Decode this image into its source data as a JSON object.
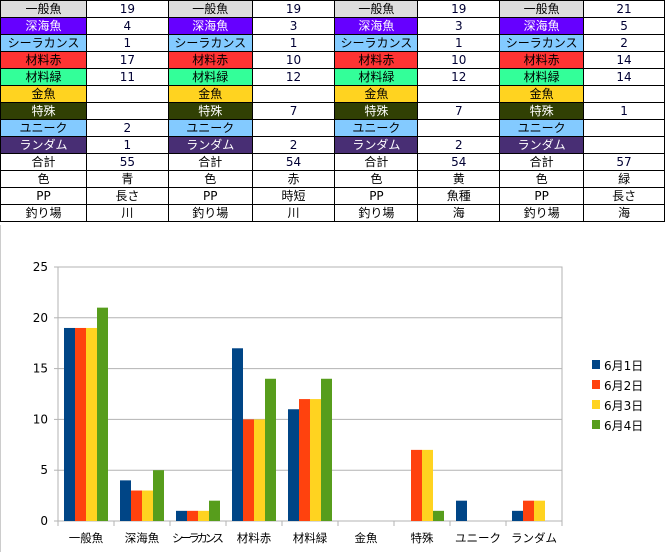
{
  "categories": [
    {
      "label": "一般魚",
      "bg": "#dddddd",
      "fg": "#000000"
    },
    {
      "label": "深海魚",
      "bg": "#6600ff",
      "fg": "#ffffff"
    },
    {
      "label": "シーラカンス",
      "bg": "#83caff",
      "fg": "#000000"
    },
    {
      "label": "材料赤",
      "bg": "#ff3333",
      "fg": "#000000"
    },
    {
      "label": "材料緑",
      "bg": "#33ff99",
      "fg": "#000000"
    },
    {
      "label": "金魚",
      "bg": "#ffd320",
      "fg": "#000000"
    },
    {
      "label": "特殊",
      "bg": "#314004",
      "fg": "#ffffff"
    },
    {
      "label": "ユニーク",
      "bg": "#83caff",
      "fg": "#000000"
    },
    {
      "label": "ランダム",
      "bg": "#482e74",
      "fg": "#ffffff"
    }
  ],
  "footer_labels": [
    "合計",
    "色",
    "PP",
    "釣り場"
  ],
  "days": [
    {
      "values": [
        "19",
        "4",
        "1",
        "17",
        "11",
        "",
        "",
        "2",
        "1"
      ],
      "footer": [
        "55",
        "青",
        "長さ",
        "川"
      ]
    },
    {
      "values": [
        "19",
        "3",
        "1",
        "10",
        "12",
        "",
        "7",
        "",
        "2"
      ],
      "footer": [
        "54",
        "赤",
        "時短",
        "川"
      ]
    },
    {
      "values": [
        "19",
        "3",
        "1",
        "10",
        "12",
        "",
        "7",
        "",
        "2"
      ],
      "footer": [
        "54",
        "黄",
        "魚種",
        "海"
      ]
    },
    {
      "values": [
        "21",
        "5",
        "2",
        "14",
        "14",
        "",
        "1",
        "",
        ""
      ],
      "footer": [
        "57",
        "緑",
        "長さ",
        "海"
      ]
    }
  ],
  "chart_data": {
    "type": "bar",
    "categories": [
      "一般魚",
      "深海魚",
      "シーラカンス",
      "材料赤",
      "材料緑",
      "金魚",
      "特殊",
      "ユニーク",
      "ランダム"
    ],
    "series": [
      {
        "name": "6月1日",
        "color": "#004586",
        "values": [
          19,
          4,
          1,
          17,
          11,
          0,
          0,
          2,
          1
        ]
      },
      {
        "name": "6月2日",
        "color": "#ff420e",
        "values": [
          19,
          3,
          1,
          10,
          12,
          0,
          7,
          0,
          2
        ]
      },
      {
        "name": "6月3日",
        "color": "#ffd320",
        "values": [
          19,
          3,
          1,
          10,
          12,
          0,
          7,
          0,
          2
        ]
      },
      {
        "name": "6月4日",
        "color": "#579d1c",
        "values": [
          21,
          5,
          2,
          14,
          14,
          0,
          1,
          0,
          0
        ]
      }
    ],
    "ylim": [
      0,
      25
    ],
    "yticks": [
      "0",
      "5",
      "10",
      "15",
      "20",
      "25"
    ],
    "grid": true,
    "legend": "right"
  }
}
